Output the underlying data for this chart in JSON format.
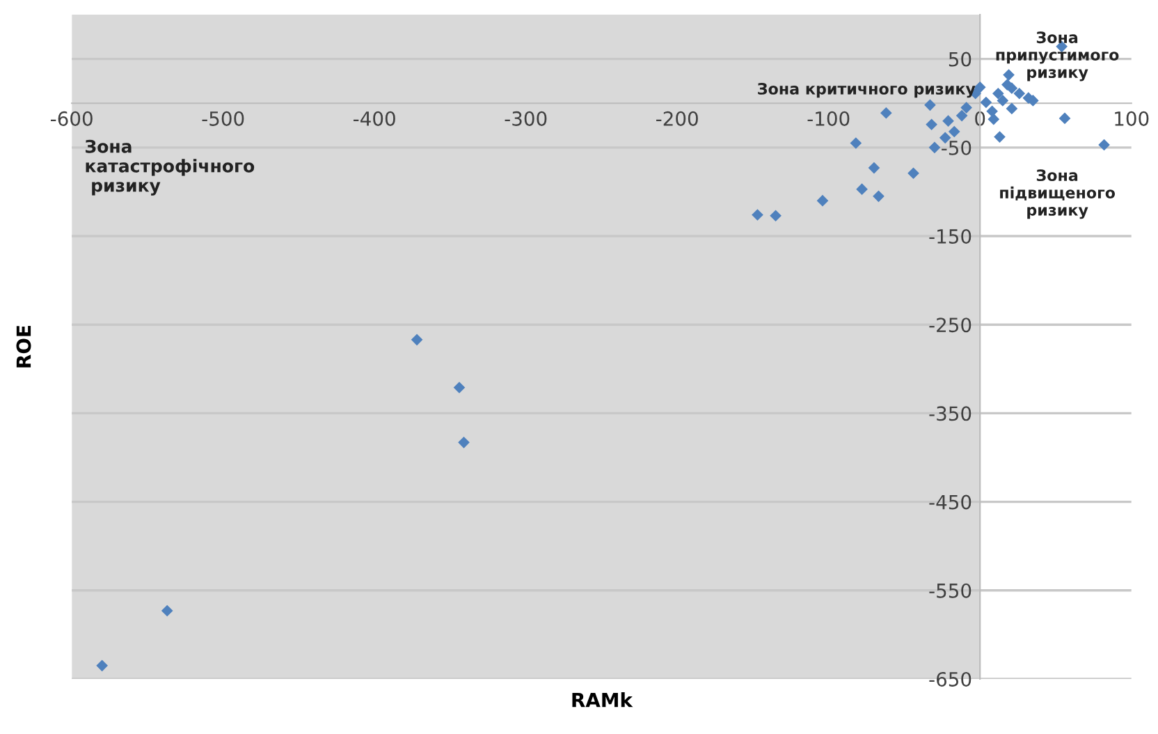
{
  "chart_data": {
    "type": "scatter",
    "xlabel": "RAMk",
    "ylabel": "ROE",
    "x": [
      -580,
      -537,
      -372,
      -344,
      -341,
      -147,
      -135,
      -104,
      -82,
      -70,
      -78,
      -67,
      -44,
      -62,
      -30,
      54,
      82,
      56,
      35,
      13,
      9,
      19,
      0,
      21,
      12,
      15,
      26,
      32,
      4,
      8,
      21,
      -33,
      -32,
      -21,
      -12,
      -9,
      -17,
      -23,
      -3,
      18
    ],
    "values": [
      -635,
      -573,
      -267,
      -321,
      -383,
      -126,
      -127,
      -110,
      -45,
      -73,
      -97,
      -105,
      -79,
      -11,
      -50,
      64,
      -47,
      -17,
      3,
      -38,
      -18,
      32,
      18,
      17,
      11,
      3,
      11,
      6,
      1,
      -9,
      -6,
      -2,
      -24,
      -20,
      -14,
      -5,
      -32,
      -39,
      11,
      21
    ],
    "color": "#4f81bd",
    "marker": "diamond",
    "xlim": [
      -600,
      100
    ],
    "ylim": [
      -650,
      100
    ],
    "xticks": [
      -600,
      -500,
      -400,
      -300,
      -200,
      -100,
      0,
      100
    ],
    "yticks": [
      -650,
      -550,
      -450,
      -350,
      -250,
      -150,
      -50,
      50
    ],
    "grid": "y",
    "bands": [
      {
        "axis": "x",
        "from": -600,
        "to": 0,
        "color": "#d9d9d9"
      }
    ],
    "annotations": [
      "Зона\nкатастрофічного\n ризику",
      "Зона критичного ризику",
      "Зона\nпідвищеного\nризику",
      "Зона\nприпустимого\nризику"
    ]
  }
}
